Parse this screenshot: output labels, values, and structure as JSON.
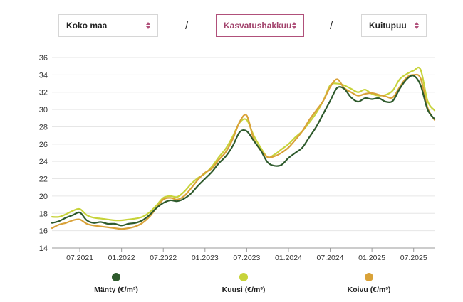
{
  "filters": {
    "region": "Koko maa",
    "cutting": "Kasvatushakkuu",
    "assortment": "Kuitupuu",
    "separator": "/"
  },
  "colors": {
    "accent": "#b0507a"
  },
  "chart_data": {
    "type": "line",
    "ylim": [
      14,
      36
    ],
    "yticks": [
      14,
      16,
      18,
      20,
      22,
      24,
      26,
      28,
      30,
      32,
      34,
      36
    ],
    "xlim": [
      "2021-03",
      "2025-10"
    ],
    "xticks": [
      "07.2021",
      "01.2022",
      "07.2022",
      "01.2023",
      "07.2023",
      "01.2024",
      "07.2024",
      "01.2025",
      "07.2025"
    ],
    "x": [
      "2021-03",
      "2021-04",
      "2021-05",
      "2021-06",
      "2021-07",
      "2021-08",
      "2021-09",
      "2021-10",
      "2021-11",
      "2021-12",
      "2022-01",
      "2022-02",
      "2022-03",
      "2022-04",
      "2022-05",
      "2022-06",
      "2022-07",
      "2022-08",
      "2022-09",
      "2022-10",
      "2022-11",
      "2022-12",
      "2023-01",
      "2023-02",
      "2023-03",
      "2023-04",
      "2023-05",
      "2023-06",
      "2023-07",
      "2023-08",
      "2023-09",
      "2023-10",
      "2023-11",
      "2023-12",
      "2024-01",
      "2024-02",
      "2024-03",
      "2024-04",
      "2024-05",
      "2024-06",
      "2024-07",
      "2024-08",
      "2024-09",
      "2024-10",
      "2024-11",
      "2024-12",
      "2025-01",
      "2025-02",
      "2025-03",
      "2025-04",
      "2025-05",
      "2025-06",
      "2025-07",
      "2025-08",
      "2025-09",
      "2025-10"
    ],
    "series": [
      {
        "name": "Mänty (€/m³)",
        "color": "#2e5a2c",
        "values": [
          16.9,
          17.1,
          17.5,
          17.8,
          18.1,
          17.2,
          16.9,
          17.0,
          16.8,
          16.8,
          16.6,
          16.8,
          16.9,
          17.2,
          17.8,
          18.6,
          19.2,
          19.5,
          19.4,
          19.7,
          20.3,
          21.2,
          22.0,
          22.8,
          23.8,
          24.6,
          25.8,
          27.4,
          27.5,
          26.4,
          25.3,
          23.9,
          23.5,
          23.6,
          24.4,
          25.0,
          25.6,
          26.8,
          28.0,
          29.5,
          31.0,
          32.5,
          32.4,
          31.4,
          30.9,
          31.3,
          31.2,
          31.3,
          30.9,
          31.0,
          32.4,
          33.5,
          33.9,
          32.8,
          30.0,
          28.9
        ]
      },
      {
        "name": "Kuusi (€/m³)",
        "color": "#c7d33a",
        "values": [
          17.6,
          17.6,
          17.9,
          18.3,
          18.5,
          17.8,
          17.5,
          17.4,
          17.3,
          17.2,
          17.2,
          17.3,
          17.4,
          17.6,
          18.1,
          18.9,
          19.8,
          20.0,
          19.9,
          20.5,
          21.4,
          22.1,
          22.6,
          23.4,
          24.5,
          25.5,
          26.9,
          28.5,
          28.8,
          27.0,
          25.6,
          24.5,
          24.8,
          25.4,
          26.0,
          26.8,
          27.5,
          28.5,
          29.6,
          31.0,
          32.8,
          33.0,
          32.8,
          32.4,
          32.0,
          32.3,
          31.8,
          31.6,
          31.7,
          32.2,
          33.5,
          34.1,
          34.5,
          34.6,
          31.0,
          29.9
        ]
      },
      {
        "name": "Koivu (€/m³)",
        "color": "#d9a238",
        "values": [
          16.3,
          16.7,
          16.9,
          17.2,
          17.3,
          16.8,
          16.6,
          16.5,
          16.4,
          16.3,
          16.2,
          16.3,
          16.5,
          16.9,
          17.6,
          18.6,
          19.6,
          19.8,
          19.6,
          20.0,
          20.9,
          21.9,
          22.7,
          23.2,
          24.2,
          25.1,
          26.6,
          28.6,
          29.3,
          26.6,
          25.3,
          24.5,
          24.6,
          25.0,
          25.6,
          26.5,
          27.5,
          28.8,
          29.9,
          31.0,
          32.6,
          33.5,
          32.5,
          32.0,
          31.6,
          31.8,
          31.9,
          31.7,
          31.5,
          31.4,
          32.6,
          33.7,
          34.0,
          33.6,
          30.2,
          28.8
        ]
      }
    ]
  }
}
